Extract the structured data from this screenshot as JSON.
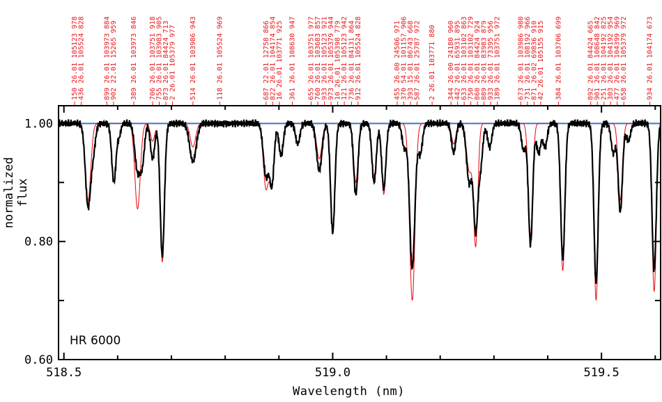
{
  "chart_data": {
    "type": "line",
    "title": "",
    "xlabel": "Wavelength (nm)",
    "ylabel": "normalized flux",
    "annotation": "HR 6000",
    "xlim": [
      518.49,
      519.61
    ],
    "ylim": [
      0.6,
      1.03
    ],
    "x_ticks": [
      518.5,
      519.0,
      519.5
    ],
    "x_tick_labels": [
      "518.5",
      "519.0",
      "519.5"
    ],
    "y_ticks": [
      0.6,
      0.8,
      1.0
    ],
    "y_tick_labels": [
      "0.60",
      "0.80",
      "1.00"
    ],
    "continuum": 1.0,
    "series": [
      {
        "role": "observed",
        "color": "#000000",
        "lines": [
          {
            "c": 518.545,
            "d": 0.14,
            "w": 0.005
          },
          {
            "c": 518.555,
            "d": 0.04,
            "w": 0.004
          },
          {
            "c": 518.593,
            "d": 0.1,
            "w": 0.004
          },
          {
            "c": 518.603,
            "d": 0.02,
            "w": 0.003
          },
          {
            "c": 518.637,
            "d": 0.08,
            "w": 0.005
          },
          {
            "c": 518.646,
            "d": 0.06,
            "w": 0.004
          },
          {
            "c": 518.665,
            "d": 0.06,
            "w": 0.004
          },
          {
            "c": 518.683,
            "d": 0.225,
            "w": 0.004
          },
          {
            "c": 518.74,
            "d": 0.065,
            "w": 0.006
          },
          {
            "c": 518.876,
            "d": 0.09,
            "w": 0.005
          },
          {
            "c": 518.887,
            "d": 0.1,
            "w": 0.004
          },
          {
            "c": 518.904,
            "d": 0.055,
            "w": 0.004
          },
          {
            "c": 518.935,
            "d": 0.035,
            "w": 0.004
          },
          {
            "c": 518.975,
            "d": 0.08,
            "w": 0.005
          },
          {
            "c": 519.0,
            "d": 0.185,
            "w": 0.004
          },
          {
            "c": 519.043,
            "d": 0.12,
            "w": 0.004
          },
          {
            "c": 519.077,
            "d": 0.1,
            "w": 0.004
          },
          {
            "c": 519.095,
            "d": 0.11,
            "w": 0.004
          },
          {
            "c": 519.133,
            "d": 0.04,
            "w": 0.004
          },
          {
            "c": 519.148,
            "d": 0.245,
            "w": 0.005
          },
          {
            "c": 519.163,
            "d": 0.05,
            "w": 0.004
          },
          {
            "c": 519.225,
            "d": 0.05,
            "w": 0.004
          },
          {
            "c": 519.254,
            "d": 0.1,
            "w": 0.005
          },
          {
            "c": 519.266,
            "d": 0.175,
            "w": 0.004
          },
          {
            "c": 519.275,
            "d": 0.07,
            "w": 0.004
          },
          {
            "c": 519.292,
            "d": 0.04,
            "w": 0.004
          },
          {
            "c": 519.355,
            "d": 0.045,
            "w": 0.004
          },
          {
            "c": 519.368,
            "d": 0.205,
            "w": 0.004
          },
          {
            "c": 519.383,
            "d": 0.05,
            "w": 0.004
          },
          {
            "c": 519.395,
            "d": 0.04,
            "w": 0.004
          },
          {
            "c": 519.428,
            "d": 0.23,
            "w": 0.004
          },
          {
            "c": 519.49,
            "d": 0.27,
            "w": 0.004
          },
          {
            "c": 519.522,
            "d": 0.05,
            "w": 0.004
          },
          {
            "c": 519.535,
            "d": 0.15,
            "w": 0.004
          },
          {
            "c": 519.55,
            "d": 0.03,
            "w": 0.004
          },
          {
            "c": 519.598,
            "d": 0.25,
            "w": 0.004
          }
        ]
      },
      {
        "role": "synthetic",
        "color": "#e8191e",
        "lines": [
          {
            "c": 518.545,
            "d": 0.13,
            "w": 0.005
          },
          {
            "c": 518.637,
            "d": 0.145,
            "w": 0.005
          },
          {
            "c": 518.665,
            "d": 0.03,
            "w": 0.004
          },
          {
            "c": 518.683,
            "d": 0.235,
            "w": 0.004
          },
          {
            "c": 518.74,
            "d": 0.04,
            "w": 0.005
          },
          {
            "c": 518.876,
            "d": 0.11,
            "w": 0.005
          },
          {
            "c": 518.887,
            "d": 0.1,
            "w": 0.004
          },
          {
            "c": 518.904,
            "d": 0.05,
            "w": 0.004
          },
          {
            "c": 518.975,
            "d": 0.06,
            "w": 0.005
          },
          {
            "c": 519.0,
            "d": 0.18,
            "w": 0.004
          },
          {
            "c": 519.043,
            "d": 0.1,
            "w": 0.004
          },
          {
            "c": 519.077,
            "d": 0.09,
            "w": 0.004
          },
          {
            "c": 519.095,
            "d": 0.12,
            "w": 0.004
          },
          {
            "c": 519.148,
            "d": 0.3,
            "w": 0.005
          },
          {
            "c": 519.225,
            "d": 0.035,
            "w": 0.004
          },
          {
            "c": 519.254,
            "d": 0.08,
            "w": 0.005
          },
          {
            "c": 519.266,
            "d": 0.205,
            "w": 0.004
          },
          {
            "c": 519.368,
            "d": 0.19,
            "w": 0.004
          },
          {
            "c": 519.428,
            "d": 0.25,
            "w": 0.004
          },
          {
            "c": 519.49,
            "d": 0.3,
            "w": 0.004
          },
          {
            "c": 519.535,
            "d": 0.13,
            "w": 0.004
          },
          {
            "c": 519.598,
            "d": 0.285,
            "w": 0.004
          }
        ]
      }
    ],
    "line_ids": [
      {
        "x": 518.52,
        "lines": [
          "150  26.01 105123 978",
          "436  26.01 105524 828"
        ]
      },
      {
        "x": 518.58,
        "lines": [
          "899  26.01 103973 884",
          "902  22.01  15265 959"
        ]
      },
      {
        "x": 518.63,
        "lines": [
          "389  26.01 103973 846"
        ]
      },
      {
        "x": 518.665,
        "lines": [
          "706  26.01 103751 918",
          "755  26.01 103983 905",
          "873  26.01  84424 713",
          "2    26.01 105379 977"
        ]
      },
      {
        "x": 518.74,
        "lines": [
          "514  26.01 103986 943"
        ]
      },
      {
        "x": 518.79,
        "lines": [
          "118  26.01 105524 969"
        ]
      },
      {
        "x": 518.876,
        "lines": [
          "687  22.01  12758 866",
          "822  26.01 104174 854",
          "16   26.01 103771 925"
        ]
      },
      {
        "x": 518.925,
        "lines": [
          "361  26.01 108630 947"
        ]
      },
      {
        "x": 518.96,
        "lines": [
          "655  26.01 103751 977",
          "760  26.01 103683 857",
          "933  26.01 105123 921",
          "973  26.01 105379 944",
          "10   26.01 105398 779",
          "121  26.01 105123 942"
        ]
      },
      {
        "x": 519.035,
        "lines": [
          "736  26.01  84131 864",
          "912  26.01 105524 828"
        ]
      },
      {
        "x": 519.12,
        "lines": [
          "455  26.00  24506 971",
          "370  54.01 101157 906",
          "393  15.01  86743 668",
          "587  26.01  25787 972"
        ]
      },
      {
        "x": 519.185,
        "lines": [
          "2    26.01 103771 880"
        ]
      },
      {
        "x": 519.22,
        "lines": [
          "344  26.00  24180 960",
          "442  26.01  65931 895",
          "633  26.01 103102 863",
          "750  26.01 103102 729",
          "860  26.01  84424 924",
          "889  26.01  83983 879",
          "933  26.01  73395 956",
          "189  26.01 103751 972"
        ]
      },
      {
        "x": 519.35,
        "lines": [
          "673  26.01 103986 980",
          "731  26.01 108192 966",
          "871  26.02  69836 910",
          "42   26.01 105155 915"
        ]
      },
      {
        "x": 519.42,
        "lines": [
          "384  26.01 103706 699"
        ]
      },
      {
        "x": 519.48,
        "lines": [
          "892  26.01  84424 665",
          "901  26.01 108648 842",
          "251  26.01 104192 825",
          "303  26.01 104192 954",
          "477  26.01 104399 969",
          "658  26.01 105379 972"
        ]
      },
      {
        "x": 519.59,
        "lines": [
          "934  26.01 104174 673"
        ]
      }
    ]
  }
}
